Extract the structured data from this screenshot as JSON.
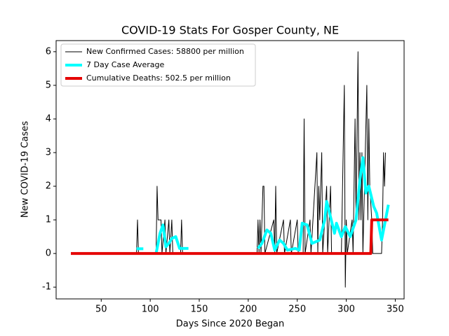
{
  "chart_data": {
    "type": "line",
    "title": "COVID-19 Stats For Gosper County, NE",
    "x_label": "Days Since 2020 Began",
    "y_label": "New COVID-19 Cases",
    "xlim": [
      4,
      359
    ],
    "ylim": [
      -1.35,
      6.33
    ],
    "xticks": [
      50,
      100,
      150,
      200,
      250,
      300,
      350
    ],
    "yticks": [
      -1,
      0,
      1,
      2,
      3,
      4,
      5,
      6
    ],
    "legend": "upper left",
    "series": [
      {
        "name": "New Confirmed Cases: 58800 per million",
        "color": "#000000",
        "linewidth": 1,
        "x": [
          20,
          86,
          87,
          88,
          106,
          107,
          108,
          111,
          112,
          115,
          116,
          119,
          120,
          122,
          123,
          131,
          132,
          133,
          209,
          210,
          211,
          212,
          213,
          215,
          216,
          217,
          226,
          227,
          228,
          229,
          236,
          237,
          243,
          244,
          250,
          251,
          256,
          257,
          258,
          263,
          264,
          270,
          271,
          272,
          273,
          275,
          276,
          280,
          281,
          284,
          285,
          295,
          298,
          299,
          300,
          301,
          306,
          307,
          309,
          310,
          312,
          313,
          314,
          315,
          316,
          317,
          321,
          322,
          323,
          324,
          326,
          327,
          336,
          337,
          338,
          339,
          340
        ],
        "values": [
          0,
          0,
          1,
          0,
          0,
          2,
          1,
          1,
          0,
          1,
          0,
          1,
          0,
          1,
          0,
          0,
          1,
          0,
          0,
          1,
          0,
          1,
          0,
          2,
          2,
          0,
          1,
          0,
          2,
          0,
          1,
          0,
          1,
          0,
          1,
          0,
          0,
          4,
          0,
          1,
          0,
          3,
          0,
          2,
          1,
          3,
          0,
          2,
          0,
          2,
          0,
          0,
          5,
          -1,
          1,
          0,
          1,
          0,
          4,
          1,
          6,
          1,
          3,
          1,
          3,
          0,
          5,
          1,
          4,
          2,
          1,
          0,
          0,
          1,
          3,
          2,
          3
        ]
      },
      {
        "name": "7 Day Case Average",
        "color": "#00ffff",
        "linewidth": 4,
        "x": [
          86,
          93,
          100,
          106,
          110,
          113,
          116,
          119,
          122,
          126,
          130,
          139,
          170,
          210,
          214,
          219,
          223,
          227,
          232,
          236,
          240,
          248,
          252,
          255,
          260,
          265,
          273,
          278,
          280,
          283,
          288,
          290,
          295,
          299,
          304,
          310,
          314,
          317,
          320,
          323,
          328,
          331,
          336,
          340,
          343
        ],
        "values": [
          0.14,
          0.14,
          null,
          0,
          0.6,
          0.85,
          0.2,
          0.3,
          0.45,
          0.5,
          0.15,
          0.15,
          null,
          0.15,
          0.3,
          0.7,
          0.6,
          0.1,
          0.4,
          0.3,
          0.1,
          0.15,
          0.1,
          0.9,
          0.85,
          0.3,
          0.4,
          1.0,
          1.55,
          1.2,
          0.6,
          0.9,
          0.5,
          0.8,
          0.5,
          1.0,
          2.2,
          2.85,
          1.8,
          2.0,
          1.4,
          1.2,
          0.4,
          1.0,
          1.45
        ]
      },
      {
        "name": "Cumulative Deaths: 502.5 per million",
        "color": "#e50000",
        "linewidth": 4,
        "x": [
          19,
          325,
          326,
          343
        ],
        "values": [
          0,
          0,
          1,
          1
        ]
      }
    ]
  }
}
